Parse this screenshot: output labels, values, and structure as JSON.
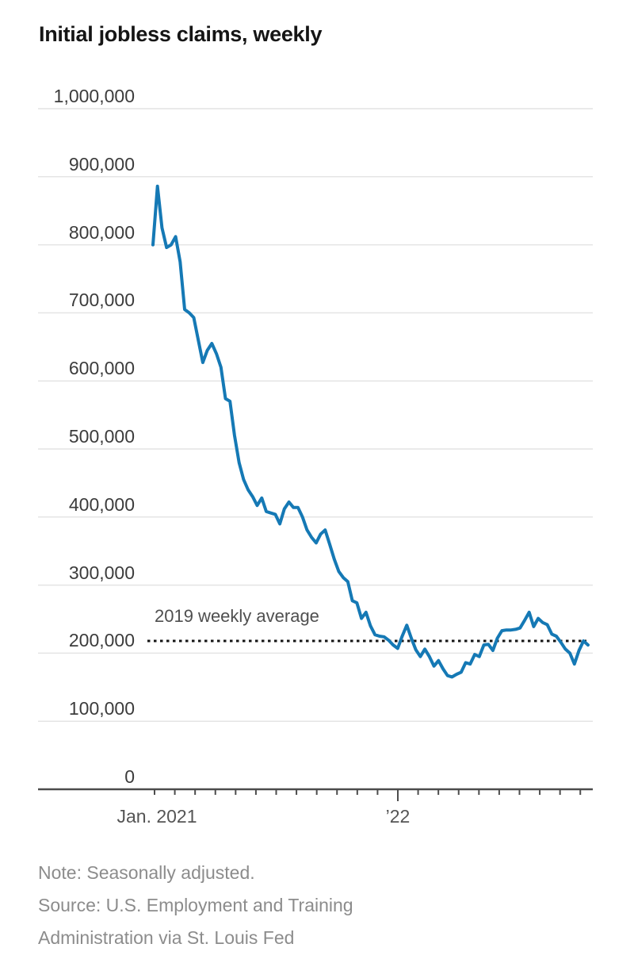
{
  "chart_data": {
    "type": "line",
    "title": "Initial jobless claims, weekly",
    "xlabel": "",
    "ylabel": "",
    "ylim": [
      0,
      1000000
    ],
    "grid": "horizontal",
    "legend": "none",
    "y_ticks": [
      {
        "value": 0,
        "label": "0"
      },
      {
        "value": 100000,
        "label": "100,000"
      },
      {
        "value": 200000,
        "label": "200,000"
      },
      {
        "value": 300000,
        "label": "300,000"
      },
      {
        "value": 400000,
        "label": "400,000"
      },
      {
        "value": 500000,
        "label": "500,000"
      },
      {
        "value": 600000,
        "label": "600,000"
      },
      {
        "value": 700000,
        "label": "700,000"
      },
      {
        "value": 800000,
        "label": "800,000"
      },
      {
        "value": 900000,
        "label": "900,000"
      },
      {
        "value": 1000000,
        "label": "1,000,000"
      }
    ],
    "x_axis_labels": [
      {
        "label": "Jan. 2021",
        "month_index": 0
      },
      {
        "label": "’22",
        "month_index": 12
      }
    ],
    "x_tick_months": 22,
    "reference_line": {
      "label": "2019 weekly average",
      "value": 218000,
      "color": "#141414",
      "style": "dotted"
    },
    "series": [
      {
        "name": "Initial jobless claims",
        "color": "#1579b5",
        "frequency": "weekly",
        "x_start_label": "Jan. 2021",
        "values_thousands": [
          800,
          886,
          825,
          796,
          800,
          812,
          775,
          705,
          700,
          693,
          660,
          627,
          645,
          655,
          640,
          620,
          574,
          570,
          520,
          480,
          455,
          440,
          430,
          417,
          428,
          408,
          406,
          404,
          390,
          412,
          422,
          414,
          414,
          400,
          381,
          370,
          362,
          375,
          381,
          360,
          338,
          320,
          311,
          305,
          277,
          274,
          251,
          260,
          240,
          227,
          225,
          224,
          219,
          212,
          207,
          225,
          241,
          222,
          205,
          195,
          206,
          195,
          181,
          189,
          177,
          167,
          165,
          169,
          172,
          186,
          184,
          198,
          195,
          212,
          213,
          204,
          222,
          233,
          234,
          234,
          235,
          237,
          248,
          260,
          239,
          251,
          245,
          242,
          228,
          225,
          216,
          206,
          200,
          184,
          204,
          218,
          212
        ]
      }
    ]
  },
  "footer": {
    "note": "Note: Seasonally adjusted.",
    "source_line1": "Source: U.S. Employment and Training",
    "source_line2": "Administration via St. Louis Fed"
  },
  "colors": {
    "line": "#1579b5",
    "gridline": "#e4e4e4",
    "axis": "#4c4c4c",
    "reference": "#141414"
  }
}
